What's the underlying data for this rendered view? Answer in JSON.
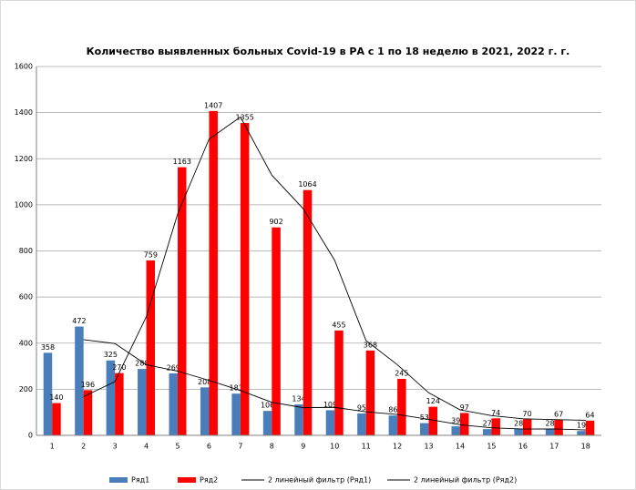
{
  "chart_data": {
    "type": "bar",
    "title": "Количество выявленных больных Covid-19 в РА с 1 по 18 неделю в 2021, 2022 г. г.",
    "categories": [
      "1",
      "2",
      "3",
      "4",
      "5",
      "6",
      "7",
      "8",
      "9",
      "10",
      "11",
      "12",
      "13",
      "14",
      "15",
      "16",
      "17",
      "18"
    ],
    "series": [
      {
        "name": "Ряд1",
        "color": "#4a7ebb",
        "values": [
          358,
          472,
          325,
          288,
          269,
          208,
          181,
          106,
          134,
          109,
          95,
          86,
          53,
          39,
          27,
          28,
          28,
          19
        ]
      },
      {
        "name": "Ряд2",
        "color": "#ff0000",
        "values": [
          140,
          196,
          270,
          759,
          1163,
          1407,
          1355,
          902,
          1064,
          455,
          368,
          245,
          124,
          97,
          74,
          70,
          67,
          64
        ]
      }
    ],
    "trendlines": [
      {
        "name": "2 линейный фильтр (Ряд1)",
        "color": "#000000",
        "values": [
          null,
          415,
          398.5,
          306.5,
          278.5,
          238.5,
          194.5,
          143.5,
          120,
          121.5,
          102,
          90.5,
          69.5,
          46,
          33,
          27.5,
          28,
          23.5
        ]
      },
      {
        "name": "2 линейный фильтр (Ряд2)",
        "color": "#000000",
        "values": [
          null,
          168,
          233,
          514.5,
          961,
          1285,
          1381,
          1128.5,
          983,
          759.5,
          411.5,
          306.5,
          184.5,
          110.5,
          85.5,
          72,
          68.5,
          65.5
        ]
      }
    ],
    "ylim": [
      0,
      1600
    ],
    "yticks": [
      0,
      200,
      400,
      600,
      800,
      1000,
      1200,
      1400,
      1600
    ],
    "grid": true,
    "legend": "bottom"
  }
}
